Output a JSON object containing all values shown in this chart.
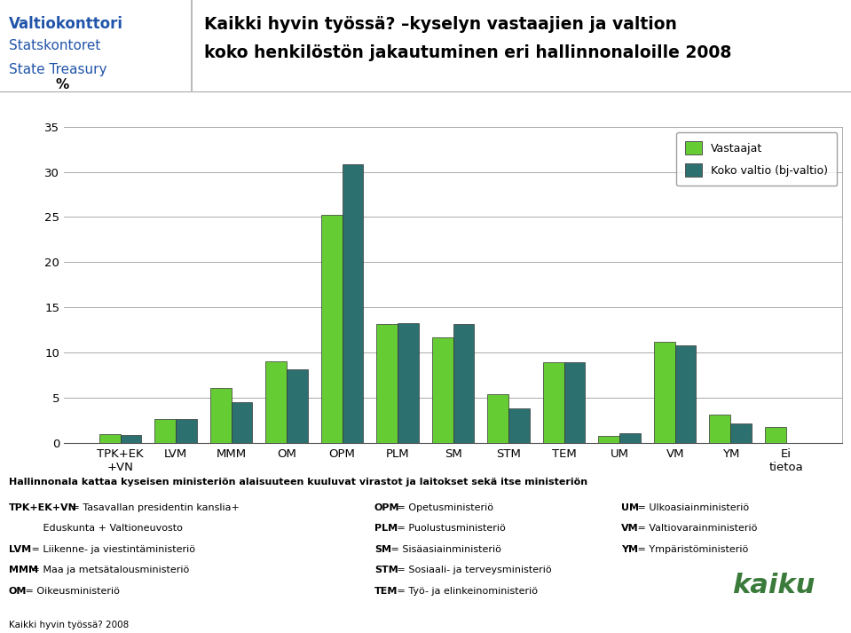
{
  "categories": [
    "TPK+EK\n+VN",
    "LVM",
    "MMM",
    "OM",
    "OPM",
    "PLM",
    "SM",
    "STM",
    "TEM",
    "UM",
    "VM",
    "YM",
    "Ei\ntietoa"
  ],
  "vastaajat": [
    1.0,
    2.7,
    6.1,
    9.0,
    25.2,
    13.2,
    11.7,
    5.4,
    8.9,
    0.8,
    11.2,
    3.2,
    1.8
  ],
  "koko_valtio": [
    0.9,
    2.7,
    4.5,
    8.2,
    30.8,
    13.3,
    13.2,
    3.8,
    8.9,
    1.1,
    10.8,
    2.2,
    0.0
  ],
  "vastaajat_color": "#66cc33",
  "koko_valtio_color": "#2d7070",
  "title_line1": "Kaikki hyvin työssä? –kyselyn vastaajien ja valtion",
  "title_line2": "koko henkilöstön jakautuminen eri hallinnonaloille 2008",
  "ylabel": "%",
  "ylim": [
    0,
    35
  ],
  "yticks": [
    0,
    5,
    10,
    15,
    20,
    25,
    30,
    35
  ],
  "legend_vastaajat": "Vastaajat",
  "legend_koko": "Koko valtio (bj-valtio)",
  "bar_width": 0.38,
  "background_color": "#ffffff",
  "grid_color": "#aaaaaa",
  "logo_color": "#2255aa",
  "logo_line1": "Valtiokonttori",
  "logo_line2": "Statskontoret",
  "logo_line3": "State Treasury",
  "note_line1": "Hallinnonala kattaa kyseisen ministeriön alaisuuteen kuuluvat virastot ja laitokset sekä itse ministeriön",
  "note_col1": [
    [
      "TPK+EK+VN",
      " = Tasavallan presidentin kanslia+"
    ],
    [
      "",
      "           Eduskunta + Valtioneuvosto"
    ],
    [
      "LVM",
      " = Liikenne- ja viestintäministeriö"
    ],
    [
      "MMM",
      " = Maa ja metsätalousministeriö"
    ],
    [
      "OM",
      " = Oikeusministeriö"
    ]
  ],
  "note_col2": [
    [
      "OPM",
      " = Opetusministeriö"
    ],
    [
      "PLM",
      " = Puolustusministeriö"
    ],
    [
      "SM",
      " = Sisäasiainministeriö"
    ],
    [
      "STM",
      " = Sosiaali- ja terveysministeriö"
    ],
    [
      "TEM",
      " = Työ- ja elinkeinoministeriö"
    ]
  ],
  "note_col3": [
    [
      "UM",
      " = Ulkoasiainministeriö"
    ],
    [
      "VM",
      " = Valtiovarainministeriö"
    ],
    [
      "YM",
      " = Ympäristöministeriö"
    ]
  ],
  "kaiku_color": "#3a7a3a",
  "footer": "Kaikki hyvin työssä? 2008"
}
